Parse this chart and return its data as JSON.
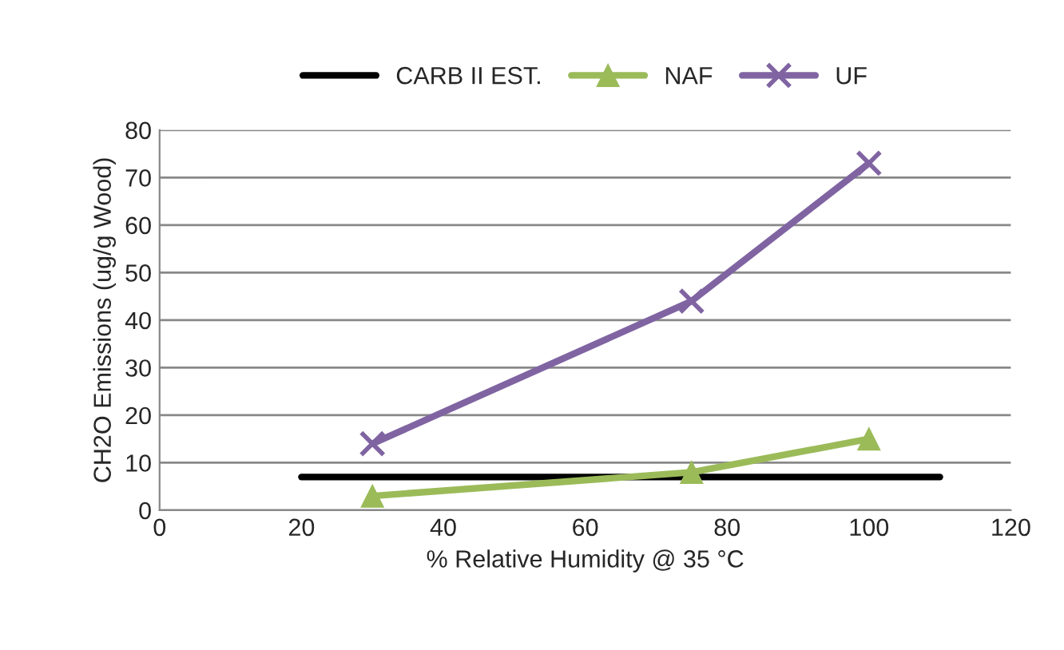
{
  "chart_data": {
    "type": "line",
    "xlabel": "% Relative Humidity @ 35 °C",
    "ylabel": "CH2O Emissions (ug/g Wood)",
    "x": [
      30,
      75,
      100
    ],
    "series": [
      {
        "name": "CARB II EST.",
        "color": "#000000",
        "x": [
          20,
          110
        ],
        "values": [
          7,
          7
        ],
        "marker": "none"
      },
      {
        "name": "NAF",
        "color": "#9bbb59",
        "values": [
          3,
          8,
          15
        ],
        "marker": "triangle"
      },
      {
        "name": "UF",
        "color": "#8064a2",
        "values": [
          14,
          44,
          73
        ],
        "marker": "cross"
      }
    ],
    "xlim": [
      0,
      120
    ],
    "xticks": [
      0,
      20,
      40,
      60,
      80,
      100,
      120
    ],
    "ylim": [
      0,
      80
    ],
    "yticks": [
      0,
      10,
      20,
      30,
      40,
      50,
      60,
      70,
      80
    ],
    "grid": "y",
    "legend": "top",
    "line_style": "solid"
  }
}
